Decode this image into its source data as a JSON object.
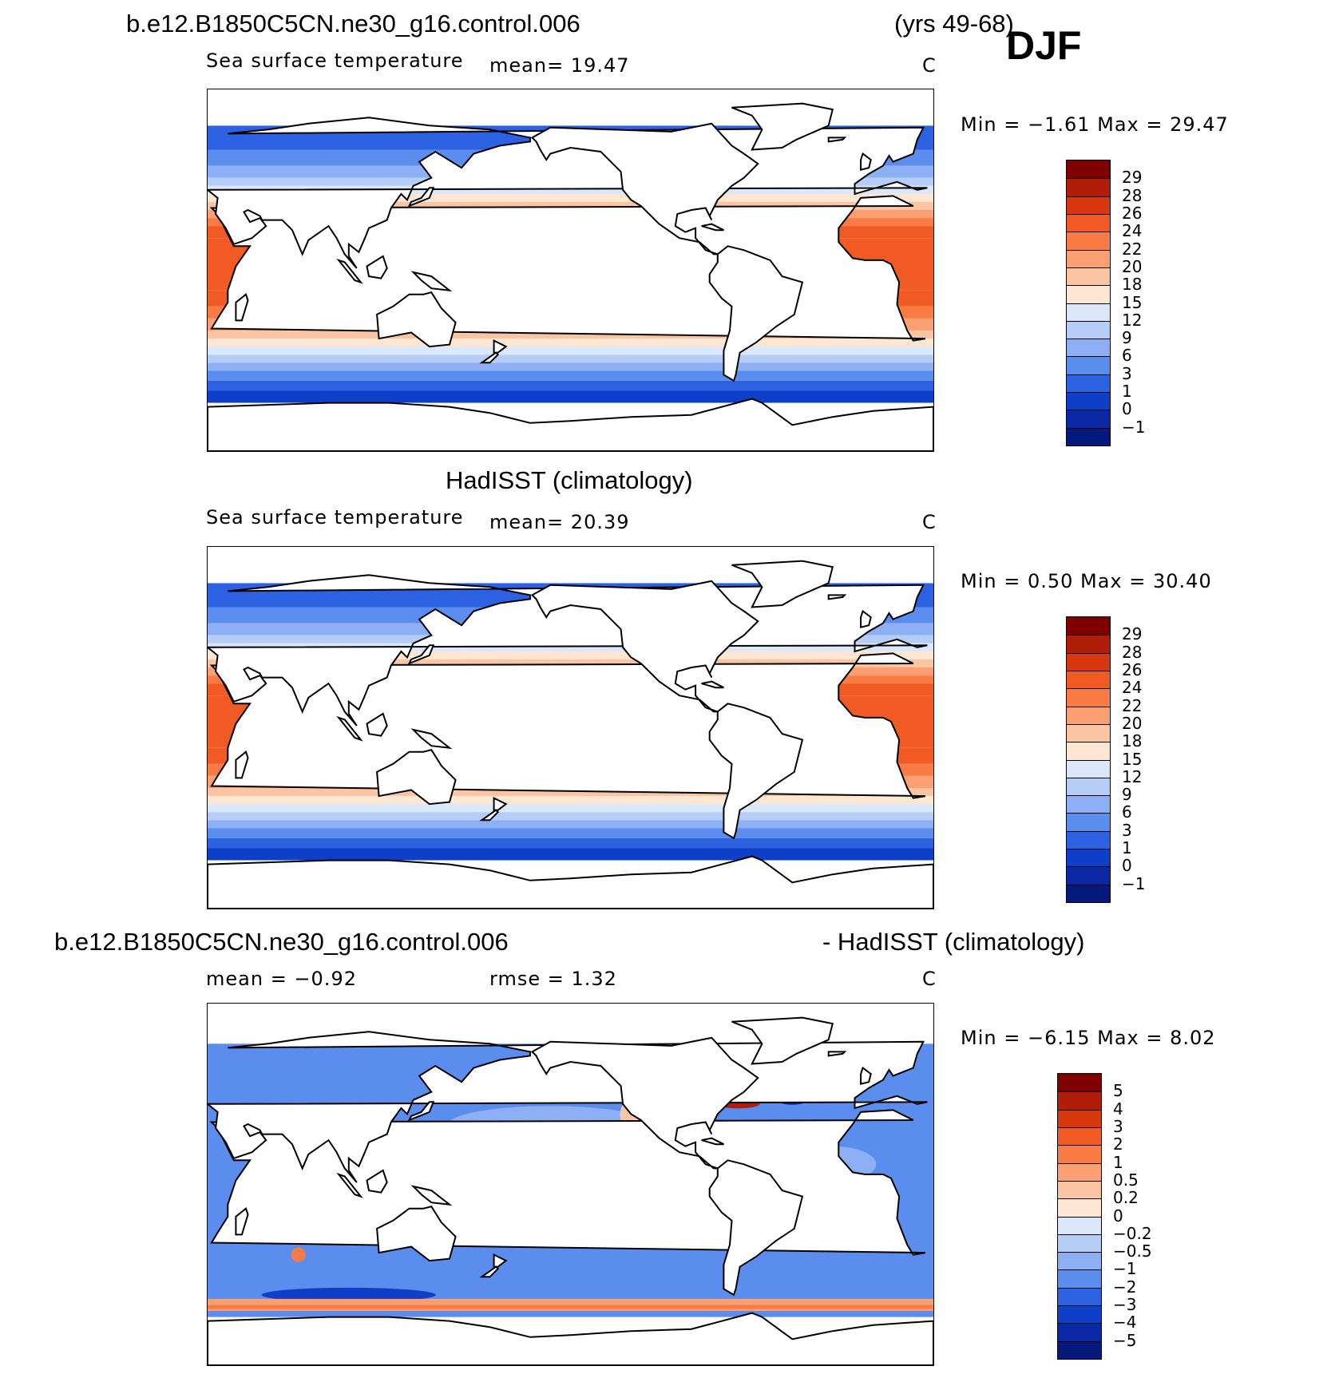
{
  "header": {
    "case_name": "b.e12.B1850C5CN.ne30_g16.control.006",
    "years": "(yrs 49-68)",
    "season": "DJF"
  },
  "panels": [
    {
      "id": "model",
      "title": "",
      "variable": "Sea surface temperature",
      "stat_left": "mean=   19.47",
      "stat_mid": "",
      "units": "C",
      "minmax": "Min =   −1.61  Max =   29.47",
      "colorbar_labels": [
        "29",
        "28",
        "26",
        "24",
        "22",
        "20",
        "18",
        "15",
        "12",
        "9",
        "6",
        "3",
        "1",
        "0",
        "−1"
      ],
      "colorbar_colors": [
        "#800000",
        "#b01e0a",
        "#d9380f",
        "#f25a23",
        "#f97c45",
        "#fca074",
        "#fbc5a3",
        "#fde6d2",
        "#dbe8fb",
        "#b6cdf8",
        "#8db0f5",
        "#5b8def",
        "#2c62e2",
        "#0f3fc9",
        "#0a28a4",
        "#041a7c"
      ]
    },
    {
      "id": "obs",
      "title": "HadISST (climatology)",
      "variable": "Sea surface temperature",
      "stat_left": "mean=   20.39",
      "stat_mid": "",
      "units": "C",
      "minmax": "Min =    0.50  Max =   30.40",
      "colorbar_labels": [
        "29",
        "28",
        "26",
        "24",
        "22",
        "20",
        "18",
        "15",
        "12",
        "9",
        "6",
        "3",
        "1",
        "0",
        "−1"
      ],
      "colorbar_colors": [
        "#800000",
        "#b01e0a",
        "#d9380f",
        "#f25a23",
        "#f97c45",
        "#fca074",
        "#fbc5a3",
        "#fde6d2",
        "#dbe8fb",
        "#b6cdf8",
        "#8db0f5",
        "#5b8def",
        "#2c62e2",
        "#0f3fc9",
        "#0a28a4",
        "#041a7c"
      ]
    },
    {
      "id": "diff",
      "title_left": "b.e12.B1850C5CN.ne30_g16.control.006",
      "title_right": "- HadISST (climatology)",
      "variable": "",
      "stat_left": "mean =   −0.92",
      "stat_mid": "rmse =    1.32",
      "units": "C",
      "minmax": "Min =   −6.15  Max =    8.02",
      "colorbar_labels": [
        "5",
        "4",
        "3",
        "2",
        "1",
        "0.5",
        "0.2",
        "0",
        "−0.2",
        "−0.5",
        "−1",
        "−2",
        "−3",
        "−4",
        "−5"
      ],
      "colorbar_colors": [
        "#800000",
        "#b01e0a",
        "#d9380f",
        "#f25a23",
        "#f97c45",
        "#fca074",
        "#fbc5a3",
        "#fde6d2",
        "#dbe8fb",
        "#b6cdf8",
        "#8db0f5",
        "#5b8def",
        "#2c62e2",
        "#0f3fc9",
        "#0a28a4",
        "#041a7c"
      ]
    }
  ]
}
